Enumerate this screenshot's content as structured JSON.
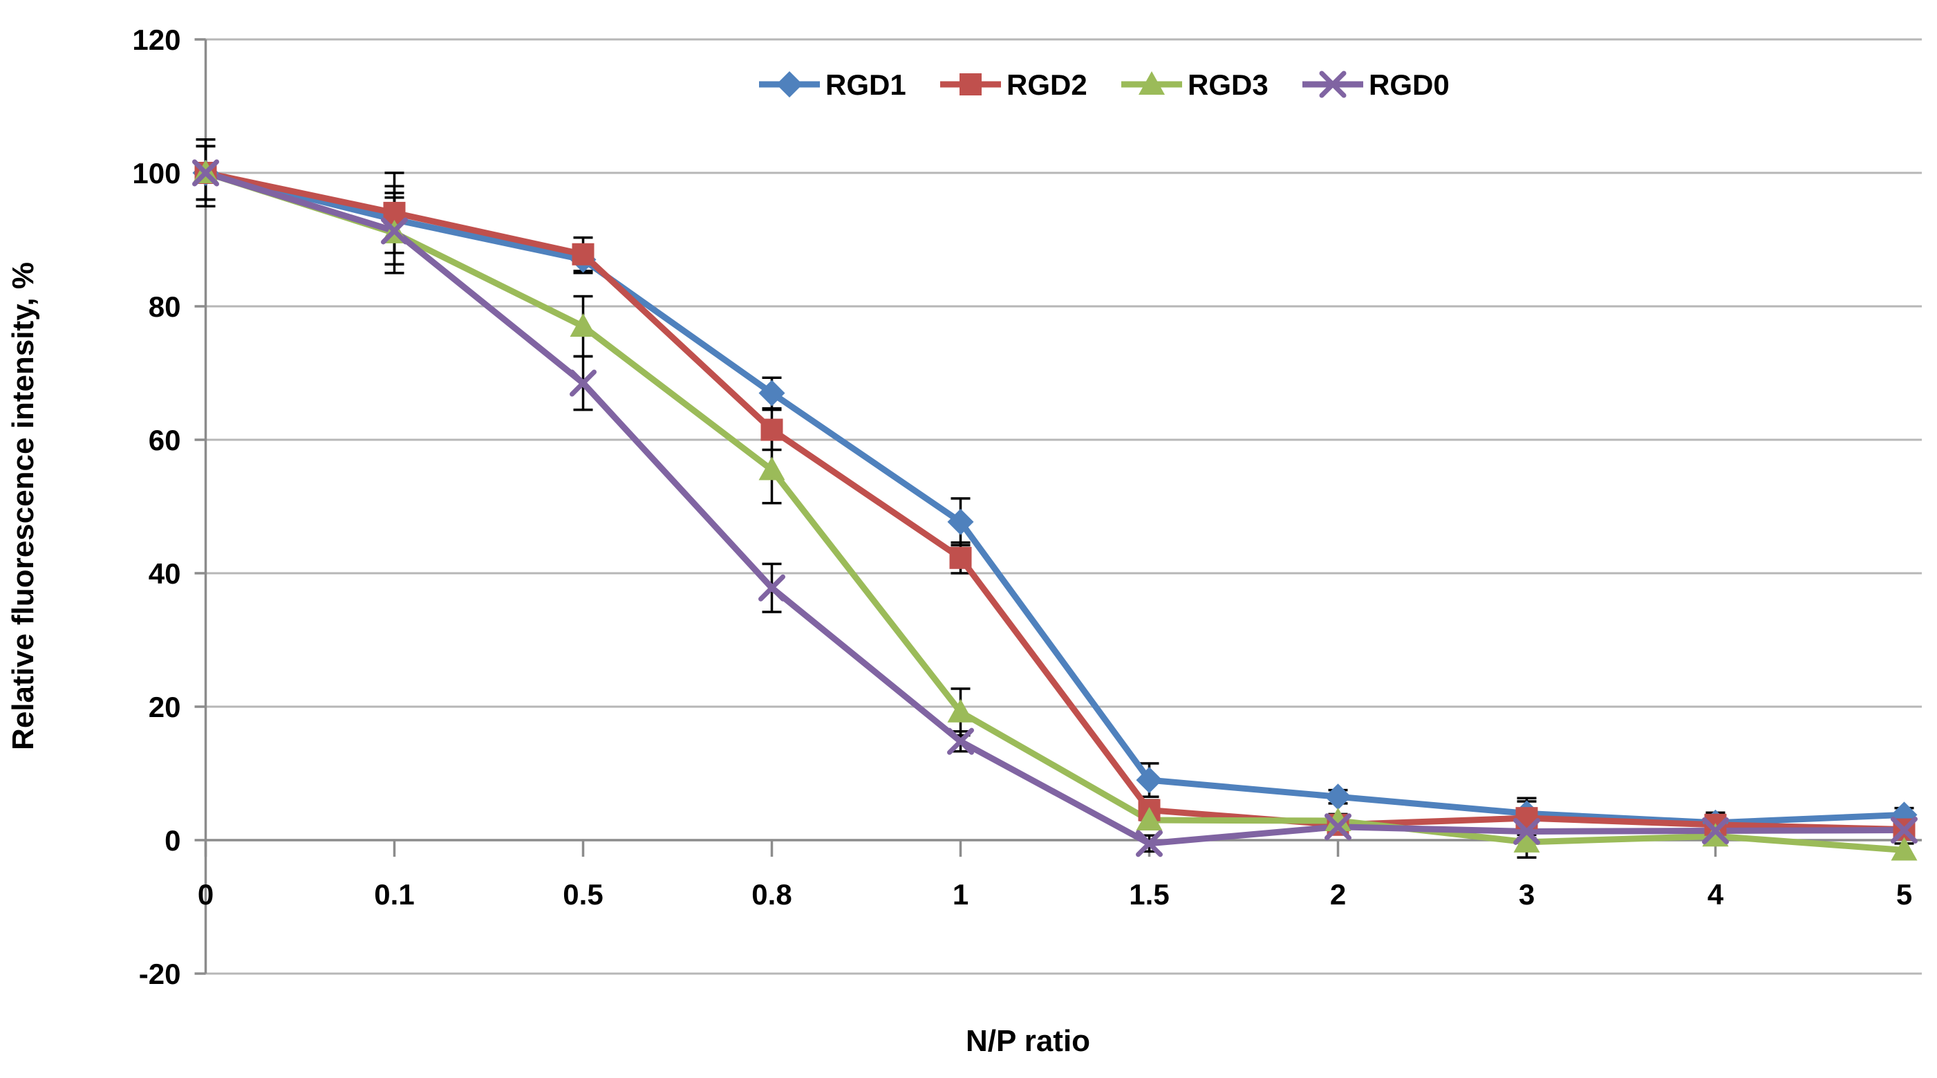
{
  "chart_data": {
    "type": "line",
    "title": "",
    "xlabel": "N/P ratio",
    "ylabel": "Relative fluorescence intensity, %",
    "categories": [
      "0",
      "0.1",
      "0.5",
      "0.8",
      "1",
      "1.5",
      "2",
      "3",
      "4",
      "5"
    ],
    "ylim": [
      -20,
      120
    ],
    "ytick_step": 20,
    "y_tick_labels": [
      "-20",
      "0",
      "20",
      "40",
      "60",
      "80",
      "100",
      "120"
    ],
    "grid": true,
    "legend_position": "top-center",
    "colors": {
      "RGD1": "#4F81BD",
      "RGD2": "#C0504D",
      "RGD3": "#9BBB59",
      "RGD0": "#8064A2",
      "gridline": "#b7b7b7",
      "axis": "#8c8c8c",
      "error_bar": "#000000"
    },
    "series": [
      {
        "name": "RGD1",
        "color": "#4F81BD",
        "marker": "diamond",
        "values": [
          100,
          93,
          87,
          67,
          47.7,
          9,
          6.5,
          4,
          2.6,
          3.8
        ],
        "errors": [
          4,
          5,
          2,
          2.3,
          3.5,
          2.5,
          1,
          2.3,
          1.5,
          1
        ]
      },
      {
        "name": "RGD2",
        "color": "#C0504D",
        "marker": "square",
        "values": [
          100,
          94,
          87.8,
          61.5,
          42.3,
          4.5,
          2.3,
          3.3,
          2.3,
          1.6
        ],
        "errors": [
          5,
          6,
          2.5,
          3,
          2.3,
          1.5,
          1,
          2.5,
          1.8,
          1
        ]
      },
      {
        "name": "RGD3",
        "color": "#9BBB59",
        "marker": "triangle",
        "values": [
          100,
          91,
          77,
          55.5,
          19.2,
          3,
          2.9,
          -0.3,
          0.6,
          -1.5
        ],
        "errors": [
          4,
          6,
          4.5,
          5,
          3.5,
          1,
          1,
          2.3,
          1,
          1
        ]
      },
      {
        "name": "RGD0",
        "color": "#8064A2",
        "marker": "x",
        "values": [
          100,
          91.3,
          68.5,
          37.8,
          14.8,
          -0.5,
          2,
          1.3,
          1.4,
          1.5
        ],
        "errors": [
          4,
          5,
          4,
          3.6,
          1.5,
          1.2,
          1,
          1,
          1,
          1
        ]
      }
    ]
  },
  "axis_titles": {
    "x": "N/P ratio",
    "y": "Relative fluorescence intensity, %"
  }
}
